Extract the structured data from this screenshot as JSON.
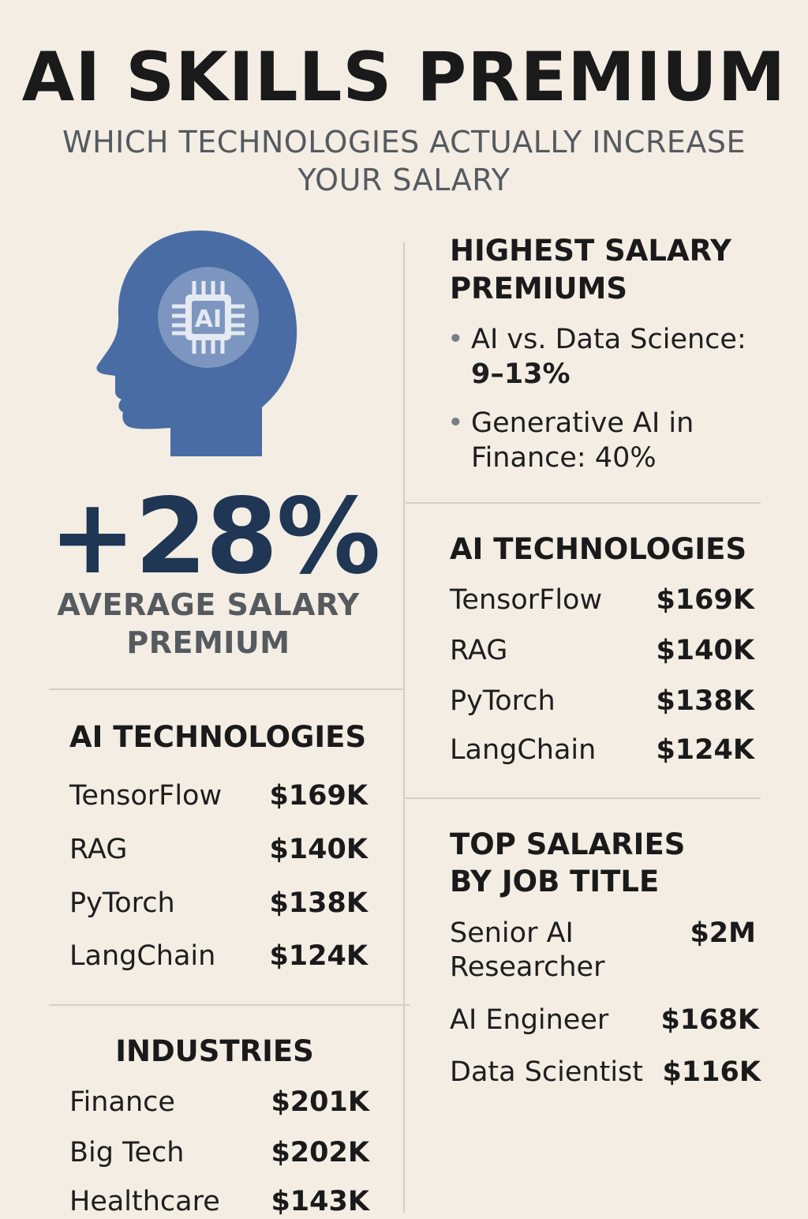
{
  "header": {
    "title": "AI SKILLS PREMIUM",
    "subtitle": "WHICH TECHNOLOGIES ACTUALLY INCREASE YOUR SALARY"
  },
  "hero": {
    "icon_text": "AI",
    "value": "+28%",
    "label": "AVERAGE SALARY PREMIUM"
  },
  "highest_premiums": {
    "title": "HIGHEST SALARY PREMIUMS",
    "bullets": [
      {
        "label": "AI vs. Data Science:",
        "value": "9–13%"
      },
      {
        "label": "Generative AI in Finance:",
        "value": "40%"
      }
    ]
  },
  "left_tech": {
    "title": "AI TECHNOLOGIES",
    "items": [
      {
        "name": "TensorFlow",
        "value": "$169K"
      },
      {
        "name": "RAG",
        "value": "$140K"
      },
      {
        "name": "PyTorch",
        "value": "$138K"
      },
      {
        "name": "LangChain",
        "value": "$124K"
      }
    ]
  },
  "right_tech": {
    "title": "AI TECHNOLOGIES",
    "items": [
      {
        "name": "TensorFlow",
        "value": "$169K"
      },
      {
        "name": "RAG",
        "value": "$140K"
      },
      {
        "name": "PyTorch",
        "value": "$138K"
      },
      {
        "name": "LangChain",
        "value": "$124K"
      }
    ]
  },
  "industries": {
    "title": "INDUSTRIES",
    "items": [
      {
        "name": "Finance",
        "value": "$201K"
      },
      {
        "name": "Big Tech",
        "value": "$202K"
      },
      {
        "name": "Healthcare",
        "value": "$143K"
      }
    ]
  },
  "job_titles": {
    "title_line1": "TOP SALARIES",
    "title_line2": "BY JOB TITLE",
    "items": [
      {
        "name_line1": "Senior AI",
        "name_line2": "Researcher",
        "value": "$2M"
      },
      {
        "name_line1": "AI Engineer",
        "value": "$168K"
      },
      {
        "name_line1": "Data Scientist",
        "value": "$116K"
      }
    ]
  },
  "colors": {
    "background": "#f3ede4",
    "accent": "#4a6ca4",
    "dark_blue": "#1f3654"
  }
}
